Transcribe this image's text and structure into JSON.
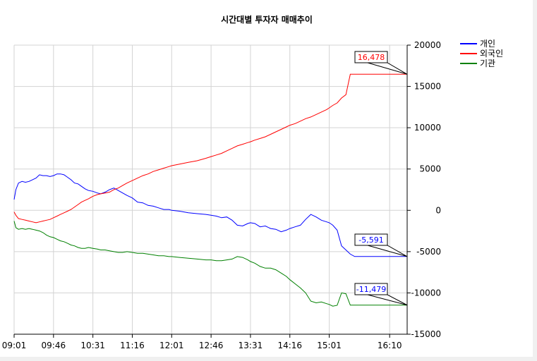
{
  "chart_data": {
    "type": "line",
    "title": "시간대별 투자자 매매추이",
    "xlabel": "",
    "ylabel": "",
    "x_ticks": [
      "09:01",
      "09:46",
      "10:31",
      "11:16",
      "12:01",
      "12:46",
      "13:31",
      "14:16",
      "15:01",
      "16:10"
    ],
    "y_ticks": [
      20000,
      15000,
      10000,
      5000,
      0,
      -5000,
      -10000,
      -15000
    ],
    "ylim": [
      -15000,
      20000
    ],
    "y_axis_side": "right",
    "grid": true,
    "legend_position": "top-right",
    "series": [
      {
        "name": "개인",
        "color": "#0000ff",
        "x": [
          "09:01",
          "09:03",
          "09:06",
          "09:10",
          "09:14",
          "09:18",
          "09:22",
          "09:26",
          "09:30",
          "09:34",
          "09:38",
          "09:42",
          "09:46",
          "09:50",
          "09:54",
          "09:58",
          "10:02",
          "10:06",
          "10:10",
          "10:14",
          "10:18",
          "10:22",
          "10:26",
          "10:31",
          "10:36",
          "10:40",
          "10:45",
          "10:50",
          "10:55",
          "11:00",
          "11:05",
          "11:10",
          "11:16",
          "11:22",
          "11:28",
          "11:34",
          "11:40",
          "11:46",
          "11:52",
          "11:58",
          "12:01",
          "12:10",
          "12:20",
          "12:30",
          "12:40",
          "12:46",
          "12:52",
          "12:58",
          "13:04",
          "13:10",
          "13:16",
          "13:22",
          "13:28",
          "13:31",
          "13:36",
          "13:42",
          "13:48",
          "13:54",
          "14:00",
          "14:06",
          "14:12",
          "14:16",
          "14:22",
          "14:28",
          "14:34",
          "14:40",
          "14:46",
          "14:52",
          "14:58",
          "15:01",
          "15:05",
          "15:10",
          "15:15",
          "15:20",
          "15:25",
          "15:30",
          "16:30"
        ],
        "values": [
          1300,
          2500,
          3300,
          3500,
          3400,
          3500,
          3700,
          3900,
          4300,
          4200,
          4200,
          4100,
          4200,
          4400,
          4400,
          4300,
          4000,
          3700,
          3300,
          3200,
          2900,
          2600,
          2400,
          2300,
          2100,
          2000,
          2200,
          2500,
          2700,
          2400,
          2100,
          1800,
          1500,
          1000,
          900,
          600,
          500,
          300,
          100,
          100,
          0,
          -100,
          -300,
          -400,
          -500,
          -600,
          -700,
          -900,
          -800,
          -1200,
          -1800,
          -1900,
          -1600,
          -1500,
          -1600,
          -2000,
          -1900,
          -2200,
          -2300,
          -2600,
          -2400,
          -2200,
          -2000,
          -1800,
          -1100,
          -500,
          -800,
          -1200,
          -1400,
          -1500,
          -1800,
          -2400,
          -4300,
          -4800,
          -5300,
          -5591,
          -5591
        ]
      },
      {
        "name": "외국인",
        "color": "#ff0000",
        "x": [
          "09:01",
          "09:03",
          "09:06",
          "09:10",
          "09:14",
          "09:18",
          "09:22",
          "09:26",
          "09:30",
          "09:34",
          "09:38",
          "09:42",
          "09:46",
          "09:50",
          "09:54",
          "09:58",
          "10:02",
          "10:06",
          "10:10",
          "10:14",
          "10:18",
          "10:22",
          "10:26",
          "10:31",
          "10:36",
          "10:40",
          "10:45",
          "10:50",
          "10:55",
          "11:00",
          "11:05",
          "11:10",
          "11:16",
          "11:22",
          "11:28",
          "11:34",
          "11:40",
          "11:46",
          "11:52",
          "11:58",
          "12:01",
          "12:10",
          "12:20",
          "12:30",
          "12:40",
          "12:46",
          "12:52",
          "12:58",
          "13:04",
          "13:10",
          "13:16",
          "13:22",
          "13:28",
          "13:31",
          "13:36",
          "13:42",
          "13:48",
          "13:54",
          "14:00",
          "14:06",
          "14:12",
          "14:16",
          "14:22",
          "14:28",
          "14:34",
          "14:40",
          "14:46",
          "14:52",
          "14:58",
          "15:01",
          "15:05",
          "15:10",
          "15:15",
          "15:20",
          "15:25",
          "15:30",
          "16:30"
        ],
        "values": [
          -200,
          -600,
          -1000,
          -1100,
          -1200,
          -1300,
          -1400,
          -1500,
          -1400,
          -1300,
          -1200,
          -1100,
          -900,
          -700,
          -500,
          -300,
          -100,
          100,
          400,
          700,
          1000,
          1200,
          1400,
          1700,
          1900,
          2000,
          2100,
          2200,
          2500,
          2700,
          3000,
          3300,
          3600,
          3900,
          4200,
          4400,
          4700,
          4900,
          5100,
          5300,
          5400,
          5600,
          5800,
          6000,
          6300,
          6500,
          6700,
          6900,
          7200,
          7500,
          7800,
          8000,
          8200,
          8300,
          8500,
          8700,
          8900,
          9200,
          9500,
          9800,
          10100,
          10300,
          10500,
          10800,
          11100,
          11300,
          11600,
          11900,
          12200,
          12400,
          12700,
          13000,
          13600,
          14000,
          16478,
          16478,
          16478
        ]
      },
      {
        "name": "기관",
        "color": "#008000",
        "x": [
          "09:01",
          "09:03",
          "09:06",
          "09:10",
          "09:14",
          "09:18",
          "09:22",
          "09:26",
          "09:30",
          "09:34",
          "09:38",
          "09:42",
          "09:46",
          "09:50",
          "09:54",
          "09:58",
          "10:02",
          "10:06",
          "10:10",
          "10:14",
          "10:18",
          "10:22",
          "10:26",
          "10:31",
          "10:36",
          "10:40",
          "10:45",
          "10:50",
          "10:55",
          "11:00",
          "11:05",
          "11:10",
          "11:16",
          "11:22",
          "11:28",
          "11:34",
          "11:40",
          "11:46",
          "11:52",
          "11:58",
          "12:01",
          "12:10",
          "12:20",
          "12:30",
          "12:40",
          "12:46",
          "12:52",
          "12:58",
          "13:04",
          "13:10",
          "13:16",
          "13:22",
          "13:28",
          "13:31",
          "13:36",
          "13:42",
          "13:48",
          "13:54",
          "14:00",
          "14:06",
          "14:12",
          "14:16",
          "14:22",
          "14:28",
          "14:34",
          "14:40",
          "14:46",
          "14:52",
          "14:58",
          "15:01",
          "15:05",
          "15:10",
          "15:15",
          "15:20",
          "15:25",
          "15:30",
          "16:30"
        ],
        "values": [
          -1300,
          -2100,
          -2300,
          -2200,
          -2300,
          -2200,
          -2300,
          -2400,
          -2500,
          -2700,
          -3000,
          -3200,
          -3300,
          -3500,
          -3700,
          -3800,
          -4000,
          -4200,
          -4300,
          -4500,
          -4600,
          -4600,
          -4500,
          -4600,
          -4700,
          -4800,
          -4800,
          -4900,
          -5000,
          -5100,
          -5100,
          -5000,
          -5100,
          -5200,
          -5200,
          -5300,
          -5400,
          -5500,
          -5500,
          -5600,
          -5600,
          -5700,
          -5800,
          -5900,
          -6000,
          -6000,
          -6100,
          -6100,
          -6000,
          -5900,
          -5600,
          -5700,
          -6000,
          -6200,
          -6400,
          -6800,
          -7000,
          -7000,
          -7200,
          -7600,
          -8000,
          -8400,
          -8900,
          -9400,
          -10000,
          -11000,
          -11200,
          -11100,
          -11300,
          -11400,
          -11600,
          -11500,
          -10000,
          -10100,
          -11479,
          -11479,
          -11479
        ]
      }
    ],
    "callouts": [
      {
        "label": "16,478",
        "series": "외국인",
        "color": "#ff0000"
      },
      {
        "label": "-5,591",
        "series": "개인",
        "color": "#0000ff"
      },
      {
        "label": "-11,479",
        "series": "기관",
        "color": "#0000ff"
      }
    ]
  }
}
